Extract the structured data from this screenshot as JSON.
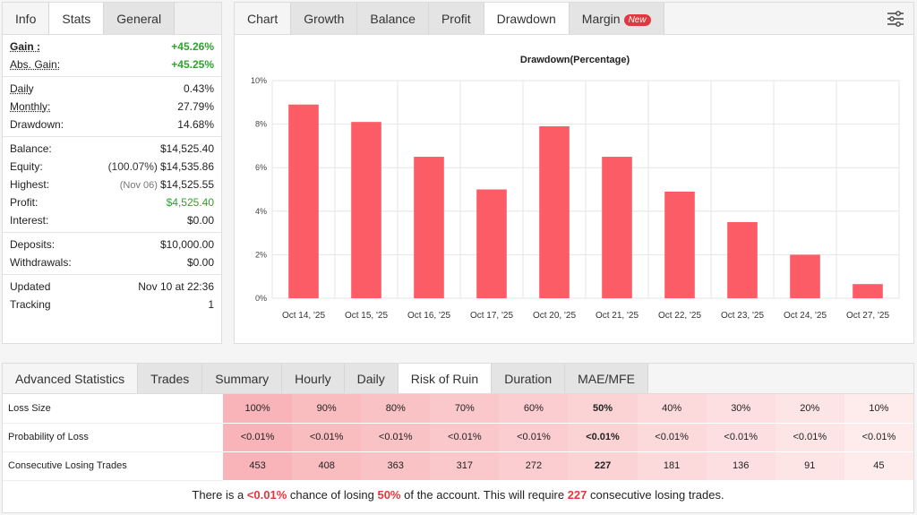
{
  "left": {
    "tabs": [
      "Info",
      "Stats",
      "General"
    ],
    "gain": {
      "label": "Gain :",
      "value": "+45.26%"
    },
    "abs_gain": {
      "label": "Abs. Gain:",
      "value": "+45.25%"
    },
    "daily": {
      "label": "Daily",
      "value": "0.43%"
    },
    "monthly": {
      "label": "Monthly:",
      "value": "27.79%"
    },
    "drawdown": {
      "label": "Drawdown:",
      "value": "14.68%"
    },
    "balance": {
      "label": "Balance:",
      "value": "$14,525.40"
    },
    "equity": {
      "label": "Equity:",
      "sub": "(100.07%)",
      "value": "$14,535.86"
    },
    "highest": {
      "label": "Highest:",
      "sub": "(Nov 06)",
      "value": "$14,525.55"
    },
    "profit": {
      "label": "Profit:",
      "value": "$4,525.40"
    },
    "interest": {
      "label": "Interest:",
      "value": "$0.00"
    },
    "deposits": {
      "label": "Deposits:",
      "value": "$10,000.00"
    },
    "withdrawals": {
      "label": "Withdrawals:",
      "value": "$0.00"
    },
    "updated": {
      "label": "Updated",
      "value": "Nov 10 at 22:36"
    },
    "tracking": {
      "label": "Tracking",
      "value": "1"
    }
  },
  "chart_tabs": [
    "Chart",
    "Growth",
    "Balance",
    "Profit",
    "Drawdown",
    "Margin"
  ],
  "new_badge": "New",
  "chart_data": {
    "type": "bar",
    "title": "Drawdown(Percentage)",
    "categories": [
      "Oct 14, '25",
      "Oct 15, '25",
      "Oct 16, '25",
      "Oct 17, '25",
      "Oct 20, '25",
      "Oct 21, '25",
      "Oct 22, '25",
      "Oct 23, '25",
      "Oct 24, '25",
      "Oct 27, '25"
    ],
    "values": [
      8.9,
      8.1,
      6.5,
      5.0,
      7.9,
      6.5,
      4.9,
      3.5,
      2.0,
      0.65
    ],
    "ylim": [
      0,
      10
    ],
    "yticks": [
      "0%",
      "2%",
      "4%",
      "6%",
      "8%",
      "10%"
    ],
    "bar_color": "#fb5c66",
    "grid": true
  },
  "bottom": {
    "tabs": [
      "Advanced Statistics",
      "Trades",
      "Summary",
      "Hourly",
      "Daily",
      "Risk of Ruin",
      "Duration",
      "MAE/MFE"
    ],
    "rows": [
      {
        "label": "Loss Size",
        "cells": [
          "100%",
          "90%",
          "80%",
          "70%",
          "60%",
          "50%",
          "40%",
          "30%",
          "20%",
          "10%"
        ]
      },
      {
        "label": "Probability of Loss",
        "cells": [
          "<0.01%",
          "<0.01%",
          "<0.01%",
          "<0.01%",
          "<0.01%",
          "<0.01%",
          "<0.01%",
          "<0.01%",
          "<0.01%",
          "<0.01%"
        ]
      },
      {
        "label": "Consecutive Losing Trades",
        "cells": [
          "453",
          "408",
          "363",
          "317",
          "272",
          "227",
          "181",
          "136",
          "91",
          "45"
        ]
      }
    ],
    "footer": {
      "p1": "There is a ",
      "prob": "<0.01%",
      "p2": " chance of losing ",
      "pct": "50%",
      "p3": " of the account. This will require ",
      "trades": "227",
      "p4": " consecutive losing trades."
    }
  }
}
